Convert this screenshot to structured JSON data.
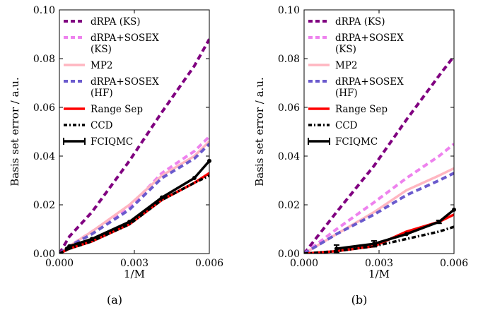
{
  "chart_data": [
    {
      "type": "line",
      "panel_label": "(a)",
      "xlabel": "1/M",
      "ylabel": "Basis set error / a.u.",
      "xlim": [
        0.0,
        0.006
      ],
      "ylim": [
        0.0,
        0.1
      ],
      "xticks": [
        "0.000",
        "0.003",
        "0.006"
      ],
      "xtick_values": [
        0.0,
        0.003,
        0.006
      ],
      "yticks": [
        "0.00",
        "0.02",
        "0.04",
        "0.06",
        "0.08",
        "0.10"
      ],
      "ytick_values": [
        0.0,
        0.02,
        0.04,
        0.06,
        0.08,
        0.1
      ],
      "legend": "top-left",
      "series": [
        {
          "name": "dRPA (KS)",
          "color": "#800080",
          "style": "dashed",
          "x": [
            0.0,
            0.0004,
            0.0013,
            0.0028,
            0.0041,
            0.0054,
            0.006
          ],
          "y": [
            0.0,
            0.007,
            0.017,
            0.038,
            0.058,
            0.077,
            0.088
          ]
        },
        {
          "name": "dRPA+SOSEX (KS)",
          "color": "#ee82ee",
          "style": "dashed",
          "x": [
            0.0,
            0.0004,
            0.0013,
            0.0028,
            0.0041,
            0.0054,
            0.006
          ],
          "y": [
            0.0,
            0.003,
            0.009,
            0.019,
            0.033,
            0.042,
            0.048
          ]
        },
        {
          "name": "MP2",
          "color": "#ffb6c1",
          "style": "solid",
          "x": [
            0.0,
            0.0004,
            0.0013,
            0.0028,
            0.0041,
            0.0054,
            0.006
          ],
          "y": [
            0.0,
            0.003,
            0.009,
            0.02,
            0.032,
            0.04,
            0.046
          ]
        },
        {
          "name": "dRPA+SOSEX (HF)",
          "color": "#6a5acd",
          "style": "dashed",
          "x": [
            0.0,
            0.0004,
            0.0013,
            0.0028,
            0.0041,
            0.0054,
            0.006
          ],
          "y": [
            0.0,
            0.003,
            0.008,
            0.018,
            0.031,
            0.039,
            0.045
          ]
        },
        {
          "name": "Range Sep",
          "color": "#ff0000",
          "style": "solid",
          "x": [
            0.0,
            0.0004,
            0.0013,
            0.0028,
            0.0041,
            0.0054,
            0.006
          ],
          "y": [
            0.0,
            0.002,
            0.005,
            0.012,
            0.022,
            0.029,
            0.033
          ]
        },
        {
          "name": "CCD",
          "color": "#000000",
          "style": "dashdot",
          "x": [
            0.0,
            0.0004,
            0.0013,
            0.0028,
            0.0041,
            0.0054,
            0.006
          ],
          "y": [
            0.0,
            0.002,
            0.005,
            0.012,
            0.022,
            0.029,
            0.032
          ]
        },
        {
          "name": "FCIQMC",
          "color": "#000000",
          "style": "errorbar",
          "x": [
            0.0003,
            0.0004,
            0.0013,
            0.0028,
            0.0041,
            0.0054,
            0.006
          ],
          "y": [
            0.002,
            0.003,
            0.006,
            0.013,
            0.023,
            0.031,
            0.038
          ]
        }
      ]
    },
    {
      "type": "line",
      "panel_label": "(b)",
      "xlabel": "1/M",
      "ylabel": "Basis set error / a.u.",
      "xlim": [
        0.0,
        0.006
      ],
      "ylim": [
        0.0,
        0.1
      ],
      "xticks": [
        "0.000",
        "0.003",
        "0.006"
      ],
      "xtick_values": [
        0.0,
        0.003,
        0.006
      ],
      "yticks": [
        "0.00",
        "0.02",
        "0.04",
        "0.06",
        "0.08",
        "0.10"
      ],
      "ytick_values": [
        0.0,
        0.02,
        0.04,
        0.06,
        0.08,
        0.1
      ],
      "legend": "top-left",
      "series": [
        {
          "name": "dRPA (KS)",
          "color": "#800080",
          "style": "dashed",
          "x": [
            0.0,
            0.0013,
            0.0028,
            0.0041,
            0.0054,
            0.006
          ],
          "y": [
            0.0,
            0.017,
            0.036,
            0.055,
            0.073,
            0.081
          ]
        },
        {
          "name": "dRPA+SOSEX (KS)",
          "color": "#ee82ee",
          "style": "dashed",
          "x": [
            0.0,
            0.0013,
            0.0028,
            0.0041,
            0.0054,
            0.006
          ],
          "y": [
            0.0,
            0.01,
            0.021,
            0.031,
            0.04,
            0.045
          ]
        },
        {
          "name": "MP2",
          "color": "#ffb6c1",
          "style": "solid",
          "x": [
            0.0,
            0.0013,
            0.0028,
            0.0041,
            0.0054,
            0.006
          ],
          "y": [
            0.0,
            0.008,
            0.017,
            0.026,
            0.032,
            0.035
          ]
        },
        {
          "name": "dRPA+SOSEX (HF)",
          "color": "#6a5acd",
          "style": "dashed",
          "x": [
            0.0,
            0.0013,
            0.0028,
            0.0041,
            0.0054,
            0.006
          ],
          "y": [
            0.0,
            0.008,
            0.016,
            0.024,
            0.03,
            0.033
          ]
        },
        {
          "name": "Range Sep",
          "color": "#ff0000",
          "style": "solid",
          "x": [
            0.0,
            0.0013,
            0.0028,
            0.0041,
            0.0054,
            0.006
          ],
          "y": [
            0.0,
            0.001,
            0.003,
            0.009,
            0.013,
            0.016
          ]
        },
        {
          "name": "CCD",
          "color": "#000000",
          "style": "dashdot",
          "x": [
            0.0,
            0.0013,
            0.0028,
            0.0041,
            0.0054,
            0.006
          ],
          "y": [
            0.0,
            0.001,
            0.003,
            0.006,
            0.009,
            0.011
          ]
        },
        {
          "name": "FCIQMC",
          "color": "#000000",
          "style": "errorbar",
          "x": [
            0.0013,
            0.0028,
            0.0041,
            0.0054,
            0.006
          ],
          "y": [
            0.002,
            0.004,
            0.008,
            0.013,
            0.018
          ],
          "err": [
            0.0015,
            0.0012,
            0.0,
            0.0006,
            0.0
          ]
        }
      ]
    }
  ]
}
